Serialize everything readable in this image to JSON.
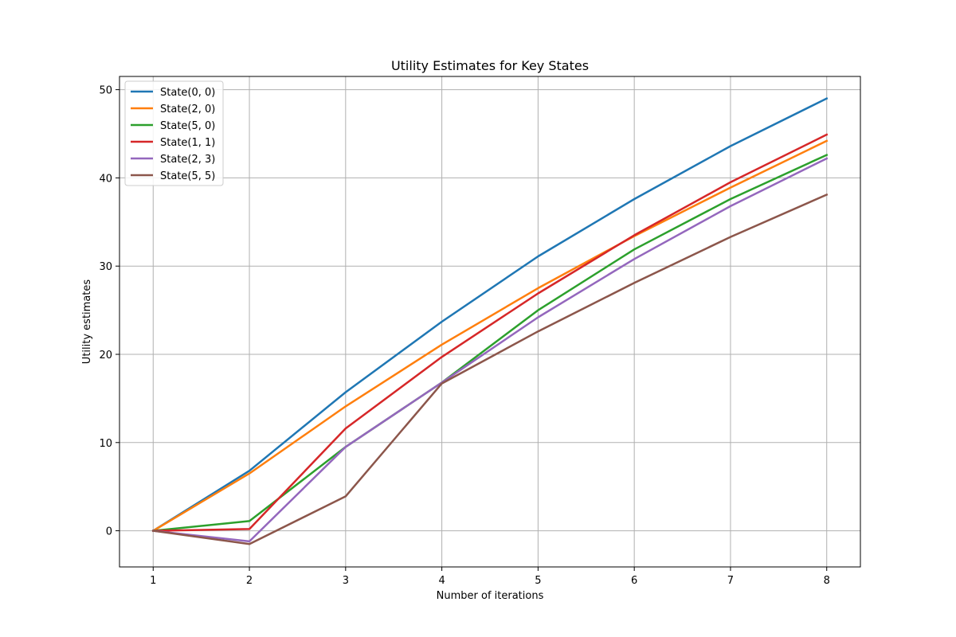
{
  "chart_data": {
    "type": "line",
    "title": "Utility Estimates for Key States",
    "xlabel": "Number of iterations",
    "ylabel": "Utility estimates",
    "x": [
      1,
      2,
      3,
      4,
      5,
      6,
      7,
      8
    ],
    "xticks": [
      1,
      2,
      3,
      4,
      5,
      6,
      7,
      8
    ],
    "yticks": [
      0,
      10,
      20,
      30,
      40,
      50
    ],
    "xlim": [
      0.65,
      8.35
    ],
    "ylim": [
      -4.1,
      51.5
    ],
    "grid": true,
    "legend_position": "top-left",
    "series": [
      {
        "name": "State(0, 0)",
        "color": "#1f77b4",
        "values": [
          0,
          6.8,
          15.7,
          23.7,
          31.1,
          37.6,
          43.6,
          49.0
        ]
      },
      {
        "name": "State(2, 0)",
        "color": "#ff7f0e",
        "values": [
          0,
          6.5,
          14.1,
          21.1,
          27.5,
          33.4,
          38.9,
          44.2
        ]
      },
      {
        "name": "State(5, 0)",
        "color": "#2ca02c",
        "values": [
          0,
          1.1,
          9.5,
          16.8,
          25.0,
          31.9,
          37.6,
          42.6
        ]
      },
      {
        "name": "State(1, 1)",
        "color": "#d62728",
        "values": [
          0,
          0.2,
          11.6,
          19.7,
          26.9,
          33.5,
          39.5,
          44.9
        ]
      },
      {
        "name": "State(2, 3)",
        "color": "#9467bd",
        "values": [
          0,
          -1.2,
          9.5,
          16.8,
          24.2,
          30.8,
          36.8,
          42.2
        ]
      },
      {
        "name": "State(5, 5)",
        "color": "#8c564b",
        "values": [
          0,
          -1.5,
          3.9,
          16.7,
          22.6,
          28.1,
          33.3,
          38.1
        ]
      }
    ]
  }
}
